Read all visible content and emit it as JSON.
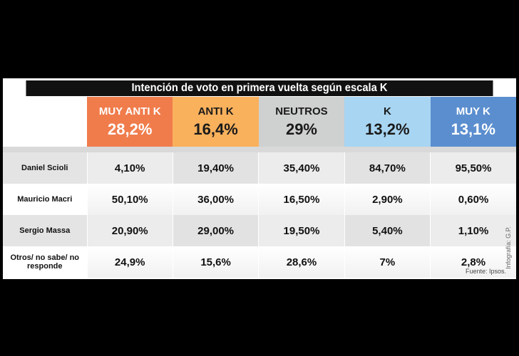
{
  "chart_data": {
    "type": "table",
    "title": "Intención de voto en primera vuelta según escala K",
    "columns": [
      {
        "label": "MUY ANTI K",
        "value": "28,2%",
        "color": "#f07c4c",
        "text_color": "#ffffff"
      },
      {
        "label": "ANTI K",
        "value": "16,4%",
        "color": "#f9b15c",
        "text_color": "#1a1a1a"
      },
      {
        "label": "NEUTROS",
        "value": "29%",
        "color": "#cfd0d0",
        "text_color": "#1a1a1a"
      },
      {
        "label": "K",
        "value": "13,2%",
        "color": "#a8d5f2",
        "text_color": "#1a1a1a"
      },
      {
        "label": "MUY K",
        "value": "13,1%",
        "color": "#5b8ecf",
        "text_color": "#ffffff"
      }
    ],
    "rows": [
      {
        "label": "Daniel Scioli",
        "values": [
          "4,10%",
          "19,40%",
          "35,40%",
          "84,70%",
          "95,50%"
        ]
      },
      {
        "label": "Mauricio Macri",
        "values": [
          "50,10%",
          "36,00%",
          "16,50%",
          "2,90%",
          "0,60%"
        ]
      },
      {
        "label": "Sergio Massa",
        "values": [
          "20,90%",
          "29,00%",
          "19,50%",
          "5,40%",
          "1,10%"
        ]
      },
      {
        "label": "Otros/ no sabe/ no responde",
        "values": [
          "24,9%",
          "15,6%",
          "28,6%",
          "7%",
          "2,8%"
        ]
      }
    ],
    "source": "Fuente: Ipsos.",
    "credit": "Infografía: G.P."
  }
}
